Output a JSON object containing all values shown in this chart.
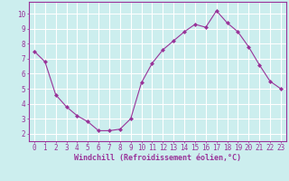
{
  "x": [
    0,
    1,
    2,
    3,
    4,
    5,
    6,
    7,
    8,
    9,
    10,
    11,
    12,
    13,
    14,
    15,
    16,
    17,
    18,
    19,
    20,
    21,
    22,
    23
  ],
  "y": [
    7.5,
    6.8,
    4.6,
    3.8,
    3.2,
    2.8,
    2.2,
    2.2,
    2.3,
    3.0,
    5.4,
    6.7,
    7.6,
    8.2,
    8.8,
    9.3,
    9.1,
    10.2,
    9.4,
    8.8,
    7.8,
    6.6,
    5.5,
    5.0
  ],
  "xlabel": "Windchill (Refroidissement éolien,°C)",
  "xticks": [
    0,
    1,
    2,
    3,
    4,
    5,
    6,
    7,
    8,
    9,
    10,
    11,
    12,
    13,
    14,
    15,
    16,
    17,
    18,
    19,
    20,
    21,
    22,
    23
  ],
  "yticks": [
    2,
    3,
    4,
    5,
    6,
    7,
    8,
    9,
    10
  ],
  "ylim": [
    1.5,
    10.8
  ],
  "xlim": [
    -0.5,
    23.5
  ],
  "line_color": "#993399",
  "marker_color": "#993399",
  "bg_color": "#cceeee",
  "grid_color": "#ffffff",
  "tick_label_color": "#993399",
  "axis_label_color": "#993399",
  "xlabel_fontsize": 6.0,
  "tick_fontsize": 5.5
}
